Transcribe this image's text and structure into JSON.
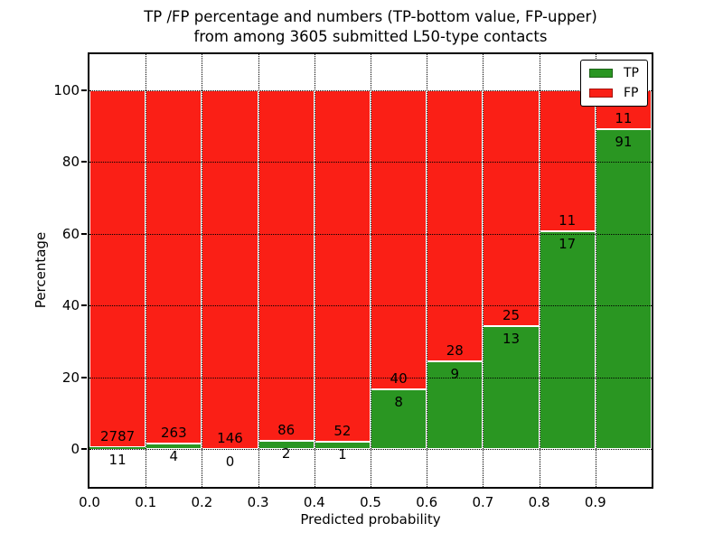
{
  "title": {
    "line1": "TP /FP percentage and numbers (TP-bottom value, FP-upper)",
    "line2": "from among 3605 submitted L50-type contacts"
  },
  "chart_data": {
    "type": "bar",
    "stacked": true,
    "normalized": "each bar totals 100%",
    "title": "TP /FP percentage and numbers (TP-bottom value, FP-upper) from among 3605 submitted L50-type contacts",
    "xlabel": "Predicted probability",
    "ylabel": "Percentage",
    "total_contacts": 3605,
    "bins": [
      "0.0-0.1",
      "0.1-0.2",
      "0.2-0.3",
      "0.3-0.4",
      "0.4-0.5",
      "0.5-0.6",
      "0.6-0.7",
      "0.7-0.8",
      "0.8-0.9",
      "0.9-1.0"
    ],
    "x_tick_labels": [
      "0.0",
      "0.1",
      "0.2",
      "0.3",
      "0.4",
      "0.5",
      "0.6",
      "0.7",
      "0.8",
      "0.9"
    ],
    "y_ticks": [
      0,
      20,
      40,
      60,
      80,
      100
    ],
    "xlim": [
      0.0,
      1.0
    ],
    "ylim": [
      -10.6,
      110.1
    ],
    "grid": true,
    "series": [
      {
        "name": "TP",
        "color": "#2a9622",
        "counts": [
          11,
          4,
          0,
          2,
          1,
          8,
          9,
          13,
          17,
          91
        ]
      },
      {
        "name": "FP",
        "color": "#fa1f16",
        "counts": [
          2787,
          263,
          146,
          86,
          52,
          40,
          28,
          25,
          11,
          11
        ]
      }
    ],
    "tp_percent": [
      0.39,
      1.5,
      0.0,
      2.27,
      1.89,
      16.67,
      24.32,
      34.21,
      60.71,
      89.22
    ],
    "legend": {
      "position": "upper right",
      "entries": [
        "TP",
        "FP"
      ]
    }
  },
  "colors": {
    "tp_green": "#2a9622",
    "fp_red": "#fa1f16",
    "background": "#ffffff",
    "frame": "#000000"
  }
}
